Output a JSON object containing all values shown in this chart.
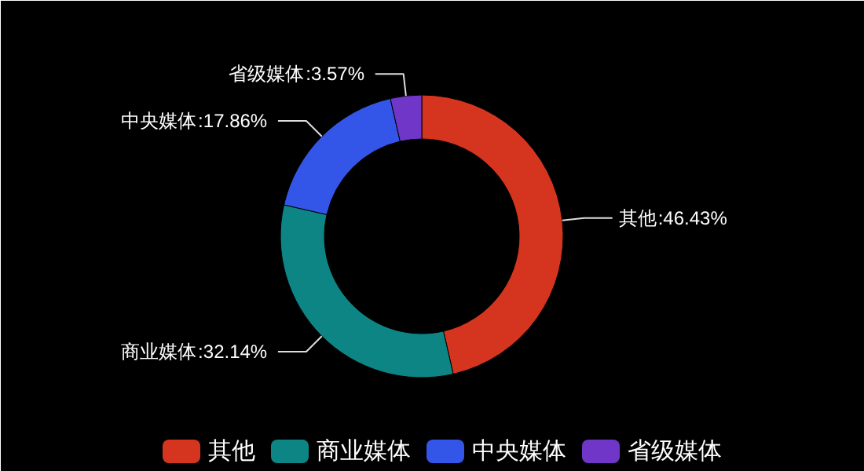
{
  "chart_data": {
    "type": "donut",
    "categories": [
      "其他",
      "商业媒体",
      "中央媒体",
      "省级媒体"
    ],
    "values": [
      46.43,
      32.14,
      17.86,
      3.57
    ],
    "value_labels": [
      ":46.43%",
      ":32.14%",
      ":17.86%",
      ":3.57%"
    ],
    "colors": [
      "#d5351f",
      "#0e8585",
      "#3355e8",
      "#7036c8"
    ],
    "legend": "bottom"
  }
}
